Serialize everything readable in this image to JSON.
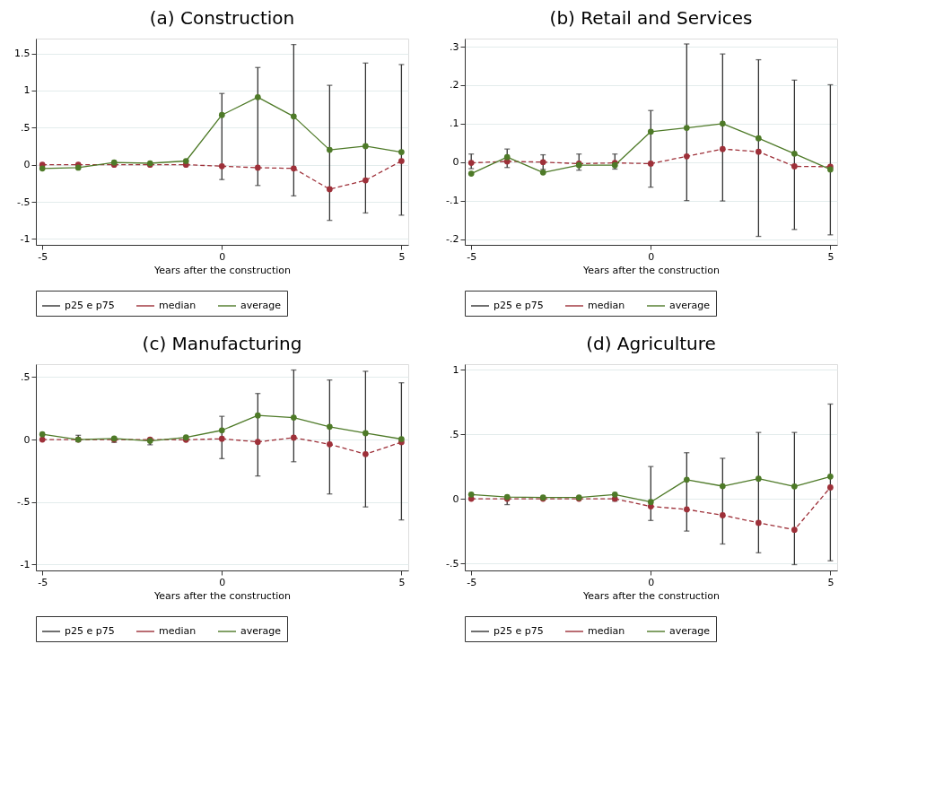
{
  "chart_data": [
    {
      "type": "line",
      "title": "(a) Construction",
      "xlabel": "Years after the construction",
      "x": [
        -5,
        -4,
        -3,
        -2,
        -1,
        0,
        1,
        2,
        3,
        4,
        5
      ],
      "xlim": [
        -5.18,
        5.19
      ],
      "xticks": [
        -5,
        0,
        5
      ],
      "ylim": [
        -1.08,
        1.7
      ],
      "yticks": [
        -1,
        {
          "value": -0.5,
          "label": "-.5"
        },
        0,
        {
          "value": 0.5,
          "label": ".5"
        },
        1,
        1.5
      ],
      "grid": "y",
      "legend": "bottom",
      "marker": "circle",
      "annotations": [
        "p25 e p75"
      ],
      "series": [
        {
          "name": "median",
          "color": "#9e3039",
          "line_style": "dashed",
          "values": [
            0,
            0,
            0,
            0,
            0,
            -0.02,
            -0.04,
            -0.05,
            -0.33,
            -0.21,
            0.05
          ],
          "errors": [
            null,
            null,
            null,
            null,
            null,
            [
              -0.2,
              0.96
            ],
            [
              -0.28,
              1.31
            ],
            [
              -0.42,
              1.62
            ],
            [
              -0.75,
              1.07
            ],
            [
              -0.65,
              1.37
            ],
            [
              -0.68,
              1.35
            ]
          ]
        },
        {
          "name": "average",
          "color": "#4e7a28",
          "line_style": "solid",
          "values": [
            -0.05,
            -0.04,
            0.03,
            0.02,
            0.05,
            0.67,
            0.91,
            0.65,
            0.2,
            0.25,
            0.17
          ]
        }
      ]
    },
    {
      "type": "line",
      "title": "(b) Retail and Services",
      "xlabel": "Years after the construction",
      "x": [
        -5,
        -4,
        -3,
        -2,
        -1,
        0,
        1,
        2,
        3,
        4,
        5
      ],
      "xlim": [
        -5.18,
        5.19
      ],
      "xticks": [
        -5,
        0,
        5
      ],
      "ylim": [
        -0.215,
        0.321
      ],
      "yticks": [
        {
          "value": -0.2,
          "label": "-.2"
        },
        {
          "value": -0.1,
          "label": "-.1"
        },
        0,
        {
          "value": 0.1,
          "label": ".1"
        },
        {
          "value": 0.2,
          "label": ".2"
        },
        {
          "value": 0.3,
          "label": ".3"
        }
      ],
      "grid": "y",
      "legend": "bottom",
      "marker": "circle",
      "annotations": [
        "p25 e p75"
      ],
      "series": [
        {
          "name": "median",
          "color": "#9e3039",
          "line_style": "dashed",
          "values": [
            -0.002,
            0.002,
            0,
            -0.004,
            -0.002,
            -0.004,
            0.015,
            0.034,
            0.027,
            -0.011,
            -0.012
          ],
          "errors": [
            [
              -0.017,
              0.021
            ],
            [
              -0.014,
              0.034
            ],
            [
              -0.019,
              0.019
            ],
            [
              -0.021,
              0.021
            ],
            [
              -0.018,
              0.021
            ],
            [
              -0.065,
              0.134
            ],
            [
              -0.1,
              0.307
            ],
            [
              -0.101,
              0.281
            ],
            [
              -0.193,
              0.266
            ],
            [
              -0.175,
              0.213
            ],
            [
              -0.189,
              0.201
            ]
          ]
        },
        {
          "name": "average",
          "color": "#4e7a28",
          "line_style": "solid",
          "values": [
            -0.03,
            0.013,
            -0.027,
            -0.008,
            -0.008,
            0.079,
            0.089,
            0.1,
            0.062,
            0.022,
            -0.019
          ]
        }
      ]
    },
    {
      "type": "line",
      "title": "(c) Manufacturing",
      "xlabel": "Years after the construction",
      "x": [
        -5,
        -4,
        -3,
        -2,
        -1,
        0,
        1,
        2,
        3,
        4,
        5
      ],
      "xlim": [
        -5.18,
        5.19
      ],
      "xticks": [
        -5,
        0,
        5
      ],
      "ylim": [
        -1.049,
        0.604
      ],
      "yticks": [
        -1,
        {
          "value": -0.5,
          "label": "-.5"
        },
        0,
        {
          "value": 0.5,
          "label": ".5"
        }
      ],
      "grid": "y",
      "legend": "bottom",
      "marker": "circle",
      "annotations": [
        "p25 e p75"
      ],
      "series": [
        {
          "name": "median",
          "color": "#9e3039",
          "line_style": "dashed",
          "values": [
            0,
            0,
            0,
            0,
            -0.002,
            0.006,
            -0.019,
            0.015,
            -0.038,
            -0.117,
            -0.021
          ],
          "errors": [
            null,
            [
              -0.017,
              0.034
            ],
            [
              -0.023,
              0.015
            ],
            [
              -0.042,
              0.008
            ],
            null,
            [
              -0.153,
              0.186
            ],
            [
              -0.292,
              0.369
            ],
            [
              -0.178,
              0.557
            ],
            [
              -0.436,
              0.477
            ],
            [
              -0.54,
              0.547
            ],
            [
              -0.644,
              0.455
            ]
          ]
        },
        {
          "name": "average",
          "color": "#4e7a28",
          "line_style": "solid",
          "values": [
            0.042,
            0,
            0.008,
            -0.011,
            0.017,
            0.074,
            0.193,
            0.176,
            0.102,
            0.051,
            0.004
          ]
        }
      ]
    },
    {
      "type": "line",
      "title": "(d) Agriculture",
      "xlabel": "Years after the construction",
      "x": [
        -5,
        -4,
        -3,
        -2,
        -1,
        0,
        1,
        2,
        3,
        4,
        5
      ],
      "xlim": [
        -5.18,
        5.19
      ],
      "xticks": [
        -5,
        0,
        5
      ],
      "ylim": [
        -0.555,
        1.043
      ],
      "yticks": [
        {
          "value": -0.5,
          "label": "-.5"
        },
        0,
        {
          "value": 0.5,
          "label": ".5"
        },
        1
      ],
      "grid": "y",
      "legend": "bottom",
      "marker": "circle",
      "annotations": [
        "p25 e p75"
      ],
      "series": [
        {
          "name": "median",
          "color": "#9e3039",
          "line_style": "dashed",
          "values": [
            0,
            0,
            0,
            0,
            0,
            -0.059,
            -0.082,
            -0.127,
            -0.186,
            -0.24,
            0.088
          ],
          "errors": [
            null,
            [
              -0.045,
              0.014
            ],
            null,
            null,
            [
              -0.018,
              0.0
            ],
            [
              -0.168,
              0.25
            ],
            [
              -0.25,
              0.357
            ],
            [
              -0.35,
              0.314
            ],
            [
              -0.418,
              0.514
            ],
            [
              -0.51,
              0.514
            ],
            [
              -0.48,
              0.734
            ]
          ]
        },
        {
          "name": "average",
          "color": "#4e7a28",
          "line_style": "solid",
          "values": [
            0.033,
            0.014,
            0.01,
            0.01,
            0.033,
            -0.025,
            0.148,
            0.098,
            0.156,
            0.096,
            0.172
          ]
        }
      ]
    }
  ]
}
